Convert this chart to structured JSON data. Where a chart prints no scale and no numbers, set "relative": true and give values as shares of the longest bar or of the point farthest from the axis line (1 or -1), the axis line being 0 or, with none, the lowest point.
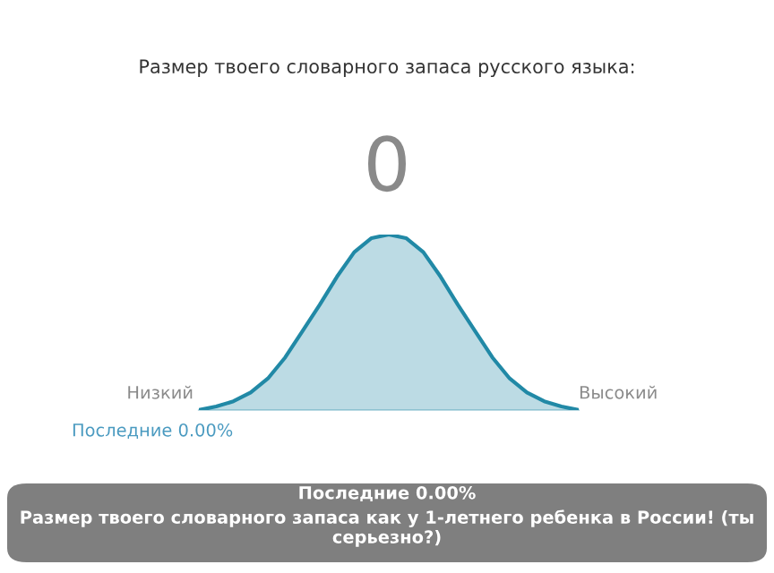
{
  "chart_data": {
    "type": "area",
    "relative": true,
    "title": "Размер твоего словарного запаса русского языка:",
    "categories": [
      null,
      null,
      null,
      null,
      null,
      null,
      null,
      null,
      null,
      null,
      null,
      null,
      null,
      null,
      null,
      null,
      null,
      null,
      null,
      null,
      null,
      null,
      null
    ],
    "series": [
      {
        "color": "#2189a6",
        "values": [
          0,
          0.02,
          0.05,
          0.1,
          0.18,
          0.3,
          0.45,
          0.6,
          0.76,
          0.9,
          0.98,
          1,
          0.98,
          0.9,
          0.76,
          0.6,
          0.45,
          0.3,
          0.18,
          0.1,
          0.05,
          0.02,
          0
        ]
      }
    ],
    "annotations": [
      "0",
      "Низкий",
      "Высокий",
      "Последние 0.00%",
      "Последние 0.00%",
      "Размер твоего словарного запаса как у 1-летнего ребенка в России! (ты серьезно?)"
    ]
  }
}
